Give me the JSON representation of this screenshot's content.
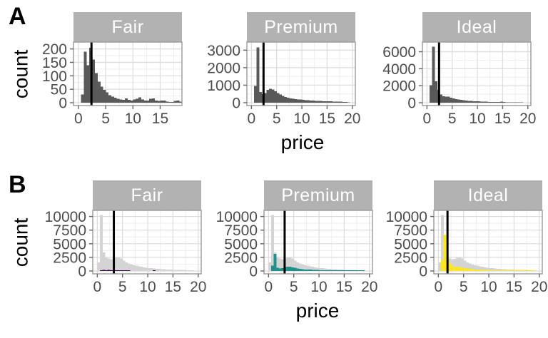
{
  "figure": {
    "rows": [
      {
        "row_label": "A",
        "y_axis_title": "count",
        "x_axis_title": "price"
      },
      {
        "row_label": "B",
        "y_axis_title": "count",
        "x_axis_title": "price"
      }
    ]
  },
  "colors": {
    "bar_dark_gray": "#595959",
    "background_histogram_gray": "#d4d4d4",
    "strip_background": "#b2b2b2",
    "strip_text": "#ffffff",
    "viridis_purple": "#440154",
    "viridis_teal": "#21908c",
    "viridis_yellow": "#fde725",
    "vline_black": "#000000",
    "axis_text": "#4d4d4d",
    "tick_mark": "#666666",
    "grid_major": "#dcdcdc",
    "grid_minor": "#eeeeee",
    "panel_border": "#999999",
    "panel_background": "#ffffff"
  },
  "chart_data": [
    {
      "row": "A",
      "type": "bar",
      "xlabel": "price",
      "ylabel": "count",
      "binwidth": 0.5,
      "bin_start": 0,
      "legend": "none",
      "grid": "on",
      "facets": [
        {
          "label": "Fair",
          "y_ticks": [
            0,
            50,
            100,
            150,
            200
          ],
          "x_ticks": [
            0,
            5,
            10,
            15
          ],
          "ymax": 215,
          "xdomain": [
            -0.9,
            19.0
          ],
          "vline_x": 2.4,
          "bar_color_key": "bar_dark_gray",
          "counts": [
            0,
            30,
            190,
            140,
            205,
            160,
            110,
            78,
            60,
            48,
            38,
            28,
            22,
            18,
            14,
            12,
            10,
            16,
            10,
            8,
            12,
            14,
            20,
            12,
            8,
            8,
            14,
            16,
            8,
            6,
            8,
            8,
            4,
            2,
            3,
            6,
            8,
            4
          ]
        },
        {
          "label": "Premium",
          "y_ticks": [
            0,
            1000,
            2000,
            3000
          ],
          "x_ticks": [
            0,
            5,
            10,
            15,
            20
          ],
          "ymax": 3300,
          "xdomain": [
            -0.9,
            20.6
          ],
          "vline_x": 2.4,
          "bar_color_key": "bar_dark_gray",
          "counts": [
            0,
            950,
            3150,
            620,
            480,
            550,
            740,
            800,
            760,
            650,
            560,
            470,
            390,
            330,
            280,
            250,
            230,
            210,
            190,
            175,
            160,
            150,
            140,
            130,
            120,
            110,
            100,
            95,
            90,
            85,
            80,
            75,
            70,
            65,
            60,
            55,
            50,
            45,
            15
          ]
        },
        {
          "label": "Ideal",
          "y_ticks": [
            0,
            2000,
            4000,
            6000
          ],
          "x_ticks": [
            0,
            5,
            10,
            15,
            20
          ],
          "ymax": 6800,
          "xdomain": [
            -0.9,
            20.6
          ],
          "vline_x": 2.4,
          "bar_color_key": "bar_dark_gray",
          "counts": [
            0,
            2050,
            6600,
            2500,
            1500,
            950,
            750,
            700,
            720,
            600,
            500,
            430,
            380,
            330,
            290,
            260,
            230,
            200,
            180,
            165,
            150,
            135,
            120,
            110,
            100,
            95,
            90,
            85,
            80,
            120,
            70,
            60,
            55,
            50,
            45,
            40,
            35,
            30,
            10
          ]
        }
      ]
    },
    {
      "row": "B",
      "type": "bar",
      "xlabel": "price",
      "ylabel": "count",
      "binwidth": 0.5,
      "bin_start": 0,
      "legend": "none",
      "grid": "on",
      "facets": [
        {
          "label": "Fair",
          "y_ticks": [
            0,
            2500,
            5000,
            7500,
            10000
          ],
          "x_ticks": [
            0,
            5,
            10,
            15,
            20
          ],
          "ymax": 10600,
          "xdomain": [
            -0.9,
            20.6
          ],
          "vline_x": 3.28,
          "bar_color_key": "viridis_purple",
          "background_color_key": "background_histogram_gray",
          "background_counts": [
            1600,
            10250,
            3400,
            2500,
            2300,
            2150,
            2250,
            2400,
            2500,
            2300,
            1900,
            1600,
            1400,
            1200,
            1050,
            950,
            850,
            760,
            680,
            610,
            550,
            500,
            450,
            410,
            370,
            340,
            310,
            280,
            255,
            235,
            215,
            200,
            185,
            175,
            165,
            155,
            145,
            135,
            40
          ],
          "counts": [
            0,
            30,
            190,
            140,
            205,
            160,
            110,
            78,
            60,
            48,
            38,
            28,
            22,
            18,
            14,
            12,
            10,
            16,
            10,
            8,
            12,
            14,
            20,
            12,
            8,
            8,
            14,
            16,
            8,
            6,
            8,
            8,
            4,
            2,
            3,
            6,
            8,
            4
          ]
        },
        {
          "label": "Premium",
          "y_ticks": [
            0,
            2500,
            5000,
            7500,
            10000
          ],
          "x_ticks": [
            0,
            5,
            10,
            15,
            20
          ],
          "ymax": 10600,
          "xdomain": [
            -0.9,
            20.6
          ],
          "vline_x": 3.19,
          "bar_color_key": "viridis_teal",
          "background_color_key": "background_histogram_gray",
          "background_counts": [
            1600,
            10250,
            3400,
            2500,
            2300,
            2150,
            2250,
            2400,
            2500,
            2300,
            1900,
            1600,
            1400,
            1200,
            1050,
            950,
            850,
            760,
            680,
            610,
            550,
            500,
            450,
            410,
            370,
            340,
            310,
            280,
            255,
            235,
            215,
            200,
            185,
            175,
            165,
            155,
            145,
            135,
            40
          ],
          "counts": [
            0,
            950,
            3150,
            620,
            480,
            550,
            740,
            800,
            760,
            650,
            560,
            470,
            390,
            330,
            280,
            250,
            230,
            210,
            190,
            175,
            160,
            150,
            140,
            130,
            120,
            110,
            100,
            95,
            90,
            85,
            80,
            75,
            70,
            65,
            60,
            55,
            50,
            45,
            15
          ]
        },
        {
          "label": "Ideal",
          "y_ticks": [
            0,
            2500,
            5000,
            7500,
            10000
          ],
          "x_ticks": [
            0,
            5,
            10,
            15,
            20
          ],
          "ymax": 10600,
          "xdomain": [
            -0.9,
            20.6
          ],
          "vline_x": 1.81,
          "bar_color_key": "viridis_yellow",
          "background_color_key": "background_histogram_gray",
          "background_counts": [
            1600,
            10250,
            3400,
            2500,
            2300,
            2150,
            2250,
            2400,
            2500,
            2300,
            1900,
            1600,
            1400,
            1200,
            1050,
            950,
            850,
            760,
            680,
            610,
            550,
            500,
            450,
            410,
            370,
            340,
            310,
            280,
            255,
            235,
            215,
            200,
            185,
            175,
            165,
            155,
            145,
            135,
            40
          ],
          "counts": [
            0,
            2050,
            6600,
            2500,
            1500,
            950,
            750,
            700,
            720,
            600,
            500,
            430,
            380,
            330,
            290,
            260,
            230,
            200,
            180,
            165,
            150,
            135,
            120,
            110,
            100,
            95,
            90,
            85,
            80,
            120,
            70,
            60,
            55,
            50,
            45,
            40,
            35,
            30,
            10
          ]
        }
      ]
    }
  ]
}
